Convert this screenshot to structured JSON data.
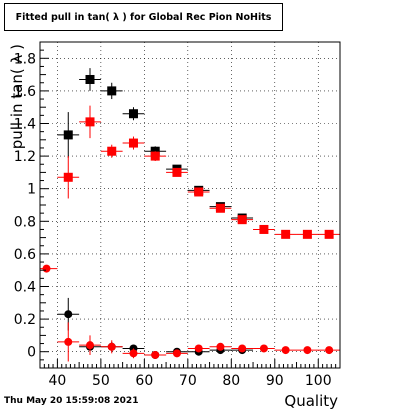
{
  "chart_data": {
    "type": "scatter",
    "title": "Fitted pull in tan( λ ) for Global Rec Pion NoHits",
    "xlabel": "Quality",
    "ylabel": "pull in tan( λ )",
    "xlim": [
      36,
      105
    ],
    "ylim": [
      -0.1,
      1.9
    ],
    "x_ticks": [
      "40",
      "50",
      "60",
      "70",
      "80",
      "90",
      "100"
    ],
    "y_ticks": [
      "0",
      "0.2",
      "0.4",
      "0.6",
      "0.8",
      "1",
      "1.2",
      "1.4",
      "1.6",
      "1.8"
    ],
    "grid": true,
    "colors": {
      "black_series": "#000000",
      "red_series": "#ff0000",
      "axis": "#000000",
      "grid": "#000000"
    },
    "series": [
      {
        "marker": "square",
        "color": "#000000",
        "x_halfwidth": 2.5,
        "points": [
          {
            "x": 42.5,
            "y": 1.33,
            "err": 0.14
          },
          {
            "x": 47.5,
            "y": 1.67,
            "err": 0.07
          },
          {
            "x": 52.5,
            "y": 1.6,
            "err": 0.05
          },
          {
            "x": 57.5,
            "y": 1.46,
            "err": 0.04
          },
          {
            "x": 62.5,
            "y": 1.23,
            "err": 0.03
          },
          {
            "x": 67.5,
            "y": 1.12,
            "err": 0.02
          },
          {
            "x": 72.5,
            "y": 0.99,
            "err": 0.02
          },
          {
            "x": 77.5,
            "y": 0.89,
            "err": 0.01
          },
          {
            "x": 82.5,
            "y": 0.82,
            "err": 0.01
          }
        ]
      },
      {
        "marker": "square",
        "color": "#ff0000",
        "x_halfwidth": 2.5,
        "points": [
          {
            "x": 42.5,
            "y": 1.07,
            "err": 0.13
          },
          {
            "x": 47.5,
            "y": 1.41,
            "err": 0.1
          },
          {
            "x": 52.5,
            "y": 1.23,
            "err": 0.04
          },
          {
            "x": 57.5,
            "y": 1.28,
            "err": 0.04
          },
          {
            "x": 62.5,
            "y": 1.2,
            "err": 0.03
          },
          {
            "x": 67.5,
            "y": 1.1,
            "err": 0.02
          },
          {
            "x": 72.5,
            "y": 0.98,
            "err": 0.02
          },
          {
            "x": 77.5,
            "y": 0.88,
            "err": 0.01
          },
          {
            "x": 82.5,
            "y": 0.81,
            "err": 0.01
          },
          {
            "x": 87.5,
            "y": 0.75,
            "err": 0.01
          },
          {
            "x": 92.5,
            "y": 0.72,
            "err": 0.01
          },
          {
            "x": 97.5,
            "y": 0.72,
            "err": 0.01
          },
          {
            "x": 102.5,
            "y": 0.72,
            "err": 0.01
          }
        ]
      },
      {
        "marker": "circle",
        "color": "#000000",
        "x_halfwidth": 2.5,
        "points": [
          {
            "x": 42.5,
            "y": 0.23,
            "err": 0.1
          },
          {
            "x": 47.5,
            "y": 0.03,
            "err": 0.05
          },
          {
            "x": 52.5,
            "y": 0.03,
            "err": 0.03
          },
          {
            "x": 57.5,
            "y": 0.02,
            "err": 0.02
          },
          {
            "x": 62.5,
            "y": -0.02,
            "err": 0.02
          },
          {
            "x": 67.5,
            "y": 0.0,
            "err": 0.01
          },
          {
            "x": 72.5,
            "y": 0.0,
            "err": 0.01
          },
          {
            "x": 77.5,
            "y": 0.01,
            "err": 0.01
          },
          {
            "x": 82.5,
            "y": 0.01,
            "err": 0.01
          }
        ]
      },
      {
        "marker": "circle",
        "color": "#ff0000",
        "x_halfwidth": 2.5,
        "points": [
          {
            "x": 37.5,
            "y": 0.51,
            "err": 0.02
          },
          {
            "x": 42.5,
            "y": 0.06,
            "err": 0.12
          },
          {
            "x": 47.5,
            "y": 0.04,
            "err": 0.06
          },
          {
            "x": 52.5,
            "y": 0.03,
            "err": 0.04
          },
          {
            "x": 57.5,
            "y": -0.01,
            "err": 0.03
          },
          {
            "x": 62.5,
            "y": -0.02,
            "err": 0.02
          },
          {
            "x": 67.5,
            "y": -0.01,
            "err": 0.02
          },
          {
            "x": 72.5,
            "y": 0.02,
            "err": 0.02
          },
          {
            "x": 77.5,
            "y": 0.03,
            "err": 0.01
          },
          {
            "x": 82.5,
            "y": 0.02,
            "err": 0.01
          },
          {
            "x": 87.5,
            "y": 0.02,
            "err": 0.01
          },
          {
            "x": 92.5,
            "y": 0.01,
            "err": 0.01
          },
          {
            "x": 97.5,
            "y": 0.01,
            "err": 0.01
          },
          {
            "x": 102.5,
            "y": 0.01,
            "err": 0.01
          }
        ]
      }
    ]
  },
  "footer": {
    "timestamp": "Thu May 20 15:59:08 2021"
  }
}
